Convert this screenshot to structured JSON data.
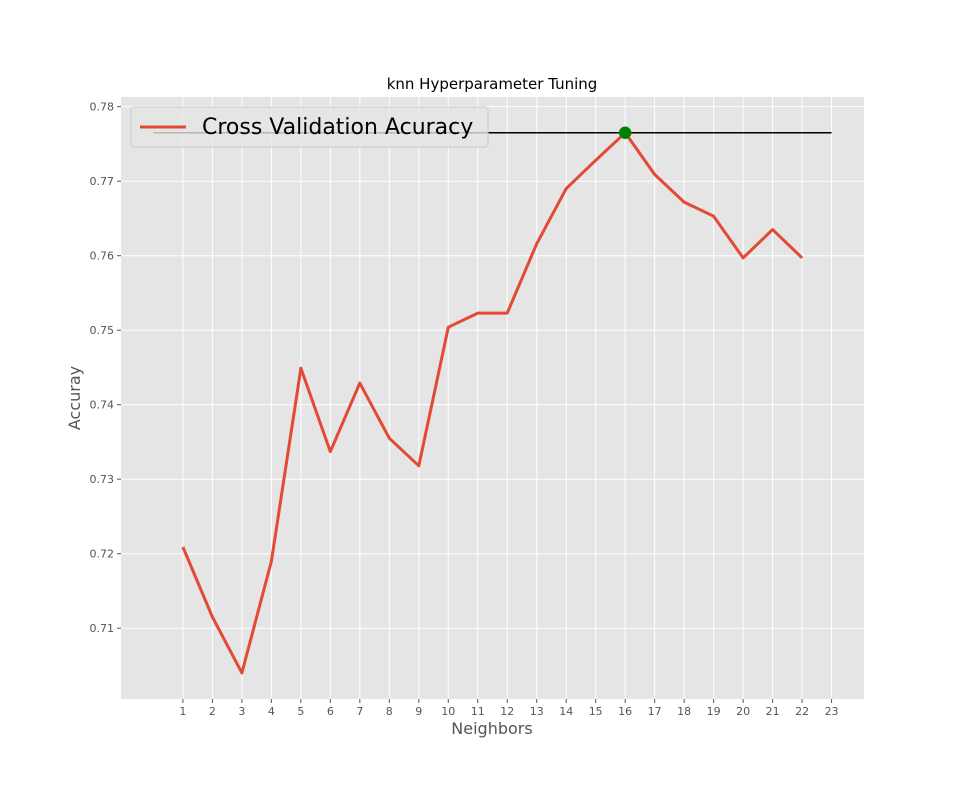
{
  "chart_data": {
    "type": "line",
    "title": "knn Hyperparameter Tuning",
    "xlabel": "Neighbors",
    "ylabel": "Accuray",
    "x": [
      1,
      2,
      3,
      4,
      5,
      6,
      7,
      8,
      9,
      10,
      11,
      12,
      13,
      14,
      15,
      16,
      17,
      18,
      19,
      20,
      21,
      22
    ],
    "xticks": [
      1,
      2,
      3,
      4,
      5,
      6,
      7,
      8,
      9,
      10,
      11,
      12,
      13,
      14,
      15,
      16,
      17,
      18,
      19,
      20,
      21,
      22,
      23
    ],
    "yticks": [
      0.71,
      0.72,
      0.73,
      0.74,
      0.75,
      0.76,
      0.77,
      0.78
    ],
    "xlim": [
      -1.1,
      24.1
    ],
    "ylim": [
      0.7005,
      0.7813
    ],
    "grid": true,
    "legend_position": "top-left",
    "series": [
      {
        "name": "Cross Validation Acuracy",
        "color": "#e24a33",
        "values": [
          0.7209,
          0.7115,
          0.704,
          0.719,
          0.7449,
          0.7337,
          0.7429,
          0.7355,
          0.7318,
          0.7504,
          0.7523,
          0.7523,
          0.7616,
          0.769,
          0.7728,
          0.7765,
          0.7709,
          0.7672,
          0.7653,
          0.7597,
          0.7635,
          0.7597
        ]
      }
    ],
    "reference_line": {
      "y": 0.7765,
      "x_from": 0,
      "x_to": 23,
      "color": "#000000"
    },
    "best_point": {
      "x": 16,
      "y": 0.7765,
      "color": "#008000"
    },
    "style": {
      "background": "#e5e5e5",
      "grid_color": "#ffffff"
    }
  }
}
